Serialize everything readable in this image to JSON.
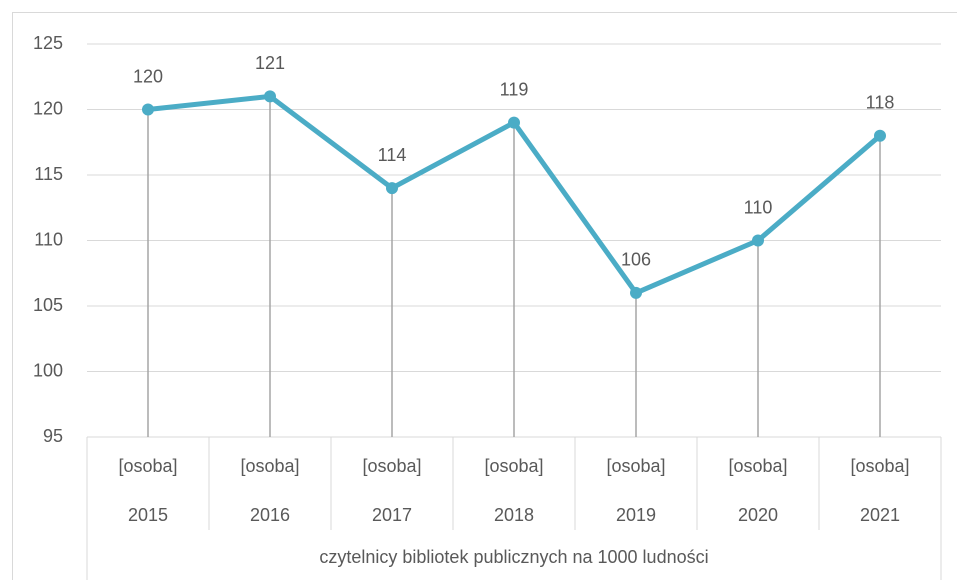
{
  "chart_data": {
    "type": "line",
    "categories": [
      "2015",
      "2016",
      "2017",
      "2018",
      "2019",
      "2020",
      "2021"
    ],
    "category_units": [
      "[osoba]",
      "[osoba]",
      "[osoba]",
      "[osoba]",
      "[osoba]",
      "[osoba]",
      "[osoba]"
    ],
    "x_label": "czytelnicy bibliotek publicznych na 1000 ludności",
    "series": [
      {
        "name": "czytelnicy bibliotek publicznych na 1000 ludności",
        "color": "#4bacc6",
        "values": [
          120,
          121,
          114,
          119,
          106,
          110,
          118
        ]
      }
    ],
    "drop_lines": true,
    "ylim": [
      95,
      125
    ],
    "yticks": [
      95,
      100,
      105,
      110,
      115,
      120,
      125
    ],
    "grid": true
  }
}
